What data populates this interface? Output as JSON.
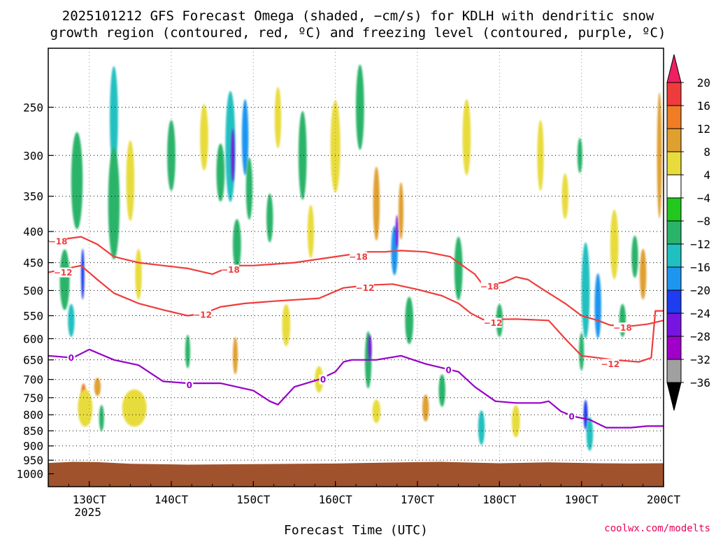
{
  "chart_data": {
    "type": "heatmap",
    "title_lines": [
      "2025101212 GFS Forecast Omega (shaded, −cm/s) for KDLH with dendritic snow",
      "growth region (contoured, red, ºC) and freezing level (contoured, purple, ºC)"
    ],
    "xlabel": "Forecast Time (UTC)",
    "ylabel": "",
    "credit": "coolwx.com/modelts",
    "x_ticks": [
      {
        "day": 13,
        "label": "130CT",
        "sub": "2025"
      },
      {
        "day": 14,
        "label": "140CT",
        "sub": ""
      },
      {
        "day": 15,
        "label": "150CT",
        "sub": ""
      },
      {
        "day": 16,
        "label": "160CT",
        "sub": ""
      },
      {
        "day": 17,
        "label": "170CT",
        "sub": ""
      },
      {
        "day": 18,
        "label": "180CT",
        "sub": ""
      },
      {
        "day": 19,
        "label": "190CT",
        "sub": ""
      },
      {
        "day": 20,
        "label": "200CT",
        "sub": ""
      }
    ],
    "xlim": [
      12.5,
      20.0
    ],
    "ylim_hPa": [
      1050,
      200
    ],
    "y_ticks": [
      {
        "p": 250,
        "label": "250"
      },
      {
        "p": 300,
        "label": "300"
      },
      {
        "p": 350,
        "label": "350"
      },
      {
        "p": 400,
        "label": "400"
      },
      {
        "p": 450,
        "label": "450"
      },
      {
        "p": 500,
        "label": "500"
      },
      {
        "p": 550,
        "label": "550"
      },
      {
        "p": 600,
        "label": "600"
      },
      {
        "p": 650,
        "label": "650"
      },
      {
        "p": 700,
        "label": "700"
      },
      {
        "p": 750,
        "label": "750"
      },
      {
        "p": 800,
        "label": "800"
      },
      {
        "p": 850,
        "label": "850"
      },
      {
        "p": 900,
        "label": "900"
      },
      {
        "p": 950,
        "label": "950"
      },
      {
        "p": 1000,
        "label": "1000"
      }
    ],
    "colorbar": {
      "levels": [
        20,
        16,
        12,
        8,
        4,
        -4,
        -8,
        -12,
        -16,
        -20,
        -24,
        -28,
        -32,
        -36
      ],
      "labels": [
        "20",
        "16",
        "12",
        "8",
        "4",
        "−4",
        "−8",
        "−12",
        "−16",
        "−20",
        "−24",
        "−28",
        "−32",
        "−36"
      ],
      "colors": [
        "#ee2060",
        "#ee3c3c",
        "#ee7d25",
        "#e0a030",
        "#e8dc3c",
        "#ffffff",
        "#22c81e",
        "#2ab46a",
        "#20c0c0",
        "#1e96f0",
        "#1e3cf0",
        "#7814e0",
        "#a000c8",
        "#a0a0a0",
        "#000000"
      ]
    },
    "colors": {
      "ground": "#a0522d",
      "dgz_contour": "#f03c3c",
      "freezing_contour": "#9600c8",
      "grid": "#8c8c8c",
      "credit": "#e6005a"
    },
    "surface_pressure_hPa": [
      [
        12.5,
        960
      ],
      [
        12.8,
        956
      ],
      [
        13.1,
        957
      ],
      [
        13.5,
        963
      ],
      [
        14.2,
        966
      ],
      [
        15.0,
        964
      ],
      [
        16.0,
        962
      ],
      [
        16.8,
        958
      ],
      [
        17.3,
        956
      ],
      [
        18.0,
        961
      ],
      [
        18.6,
        958
      ],
      [
        19.2,
        961
      ],
      [
        19.6,
        962
      ],
      [
        20.0,
        961
      ]
    ],
    "omega_features": [
      {
        "t": 12.7,
        "p": 480,
        "v": -8,
        "w": 0.06,
        "h": 110
      },
      {
        "t": 12.78,
        "p": 560,
        "v": -12,
        "w": 0.04,
        "h": 70
      },
      {
        "t": 12.85,
        "p": 330,
        "v": -8,
        "w": 0.07,
        "h": 120
      },
      {
        "t": 12.92,
        "p": 470,
        "v": -20,
        "w": 0.02,
        "h": 90
      },
      {
        "t": 12.93,
        "p": 740,
        "v": 12,
        "w": 0.03,
        "h": 60
      },
      {
        "t": 12.95,
        "p": 780,
        "v": 4,
        "w": 0.09,
        "h": 110
      },
      {
        "t": 13.1,
        "p": 720,
        "v": 8,
        "w": 0.04,
        "h": 50
      },
      {
        "t": 13.15,
        "p": 810,
        "v": -8,
        "w": 0.03,
        "h": 80
      },
      {
        "t": 13.3,
        "p": 260,
        "v": -12,
        "w": 0.05,
        "h": 100
      },
      {
        "t": 13.3,
        "p": 360,
        "v": -8,
        "w": 0.07,
        "h": 150
      },
      {
        "t": 13.5,
        "p": 330,
        "v": 4,
        "w": 0.05,
        "h": 100
      },
      {
        "t": 13.55,
        "p": 780,
        "v": 4,
        "w": 0.15,
        "h": 110
      },
      {
        "t": 13.6,
        "p": 470,
        "v": 4,
        "w": 0.04,
        "h": 90
      },
      {
        "t": 14.0,
        "p": 300,
        "v": -8,
        "w": 0.05,
        "h": 80
      },
      {
        "t": 14.2,
        "p": 630,
        "v": -8,
        "w": 0.03,
        "h": 80
      },
      {
        "t": 14.4,
        "p": 280,
        "v": 4,
        "w": 0.05,
        "h": 70
      },
      {
        "t": 14.6,
        "p": 320,
        "v": -8,
        "w": 0.05,
        "h": 70
      },
      {
        "t": 14.72,
        "p": 290,
        "v": -12,
        "w": 0.06,
        "h": 120
      },
      {
        "t": 14.75,
        "p": 300,
        "v": -24,
        "w": 0.02,
        "h": 60
      },
      {
        "t": 14.78,
        "p": 640,
        "v": 8,
        "w": 0.03,
        "h": 90
      },
      {
        "t": 14.8,
        "p": 420,
        "v": -8,
        "w": 0.05,
        "h": 80
      },
      {
        "t": 14.9,
        "p": 280,
        "v": -16,
        "w": 0.04,
        "h": 80
      },
      {
        "t": 14.95,
        "p": 340,
        "v": -8,
        "w": 0.04,
        "h": 80
      },
      {
        "t": 15.2,
        "p": 380,
        "v": -8,
        "w": 0.04,
        "h": 70
      },
      {
        "t": 15.3,
        "p": 260,
        "v": 4,
        "w": 0.04,
        "h": 60
      },
      {
        "t": 15.4,
        "p": 570,
        "v": 4,
        "w": 0.05,
        "h": 90
      },
      {
        "t": 15.6,
        "p": 300,
        "v": -8,
        "w": 0.05,
        "h": 100
      },
      {
        "t": 15.7,
        "p": 400,
        "v": 4,
        "w": 0.04,
        "h": 80
      },
      {
        "t": 15.8,
        "p": 700,
        "v": 4,
        "w": 0.05,
        "h": 70
      },
      {
        "t": 16.0,
        "p": 290,
        "v": 4,
        "w": 0.06,
        "h": 100
      },
      {
        "t": 16.3,
        "p": 250,
        "v": -8,
        "w": 0.05,
        "h": 80
      },
      {
        "t": 16.4,
        "p": 650,
        "v": -8,
        "w": 0.04,
        "h": 140
      },
      {
        "t": 16.42,
        "p": 620,
        "v": -24,
        "w": 0.02,
        "h": 60
      },
      {
        "t": 16.5,
        "p": 360,
        "v": 8,
        "w": 0.04,
        "h": 100
      },
      {
        "t": 16.5,
        "p": 790,
        "v": 4,
        "w": 0.05,
        "h": 70
      },
      {
        "t": 16.72,
        "p": 430,
        "v": -16,
        "w": 0.04,
        "h": 80
      },
      {
        "t": 16.75,
        "p": 400,
        "v": -24,
        "w": 0.015,
        "h": 50
      },
      {
        "t": 16.8,
        "p": 370,
        "v": 8,
        "w": 0.03,
        "h": 80
      },
      {
        "t": 16.9,
        "p": 560,
        "v": -8,
        "w": 0.05,
        "h": 100
      },
      {
        "t": 17.1,
        "p": 780,
        "v": 8,
        "w": 0.04,
        "h": 80
      },
      {
        "t": 17.3,
        "p": 730,
        "v": -8,
        "w": 0.04,
        "h": 90
      },
      {
        "t": 17.5,
        "p": 460,
        "v": -8,
        "w": 0.05,
        "h": 110
      },
      {
        "t": 17.6,
        "p": 280,
        "v": 4,
        "w": 0.05,
        "h": 80
      },
      {
        "t": 17.78,
        "p": 840,
        "v": -12,
        "w": 0.04,
        "h": 110
      },
      {
        "t": 18.0,
        "p": 560,
        "v": -8,
        "w": 0.04,
        "h": 70
      },
      {
        "t": 18.2,
        "p": 820,
        "v": 4,
        "w": 0.05,
        "h": 100
      },
      {
        "t": 18.5,
        "p": 300,
        "v": 4,
        "w": 0.04,
        "h": 80
      },
      {
        "t": 18.8,
        "p": 350,
        "v": 4,
        "w": 0.04,
        "h": 60
      },
      {
        "t": 18.98,
        "p": 300,
        "v": -8,
        "w": 0.03,
        "h": 40
      },
      {
        "t": 19.0,
        "p": 630,
        "v": -8,
        "w": 0.03,
        "h": 90
      },
      {
        "t": 19.05,
        "p": 500,
        "v": -12,
        "w": 0.05,
        "h": 180
      },
      {
        "t": 19.05,
        "p": 800,
        "v": -20,
        "w": 0.025,
        "h": 90
      },
      {
        "t": 19.1,
        "p": 860,
        "v": -12,
        "w": 0.04,
        "h": 110
      },
      {
        "t": 19.2,
        "p": 530,
        "v": -16,
        "w": 0.04,
        "h": 130
      },
      {
        "t": 19.4,
        "p": 420,
        "v": 4,
        "w": 0.05,
        "h": 110
      },
      {
        "t": 19.5,
        "p": 560,
        "v": -8,
        "w": 0.04,
        "h": 70
      },
      {
        "t": 19.65,
        "p": 440,
        "v": -8,
        "w": 0.04,
        "h": 70
      },
      {
        "t": 19.75,
        "p": 470,
        "v": 8,
        "w": 0.04,
        "h": 90
      },
      {
        "t": 19.95,
        "p": 300,
        "v": 8,
        "w": 0.03,
        "h": 140
      }
    ],
    "series": [
      {
        "name": "-18 ºC (dendritic snow growth top)",
        "label": "−18",
        "color": "#f03c3c",
        "points": [
          [
            12.5,
            415
          ],
          [
            12.9,
            408
          ],
          [
            13.1,
            420
          ],
          [
            13.3,
            440
          ],
          [
            13.6,
            450
          ],
          [
            13.9,
            455
          ],
          [
            14.2,
            460
          ],
          [
            14.5,
            470
          ],
          [
            14.75,
            455
          ],
          [
            15.0,
            455
          ],
          [
            15.5,
            450
          ],
          [
            16.0,
            440
          ],
          [
            16.4,
            432
          ],
          [
            16.6,
            432
          ],
          [
            16.8,
            430
          ],
          [
            17.1,
            432
          ],
          [
            17.4,
            440
          ],
          [
            17.55,
            455
          ],
          [
            17.7,
            470
          ],
          [
            17.8,
            490
          ],
          [
            18.05,
            485
          ],
          [
            18.2,
            475
          ],
          [
            18.35,
            480
          ],
          [
            18.5,
            495
          ],
          [
            18.8,
            525
          ],
          [
            19.0,
            550
          ],
          [
            19.2,
            560
          ],
          [
            19.35,
            570
          ],
          [
            19.6,
            572
          ],
          [
            19.8,
            568
          ],
          [
            20.0,
            560
          ]
        ],
        "label_points": [
          [
            12.62,
            415
          ],
          [
            14.72,
            462
          ],
          [
            16.28,
            440
          ],
          [
            17.88,
            492
          ],
          [
            19.5,
            575
          ]
        ]
      },
      {
        "name": "-12 ºC (dendritic snow growth bottom)",
        "label": "−12",
        "color": "#f03c3c",
        "points": [
          [
            12.5,
            467
          ],
          [
            12.9,
            455
          ],
          [
            13.1,
            480
          ],
          [
            13.3,
            505
          ],
          [
            13.6,
            525
          ],
          [
            13.9,
            538
          ],
          [
            14.2,
            550
          ],
          [
            14.4,
            545
          ],
          [
            14.6,
            532
          ],
          [
            14.9,
            525
          ],
          [
            15.3,
            520
          ],
          [
            15.8,
            515
          ],
          [
            16.1,
            495
          ],
          [
            16.4,
            490
          ],
          [
            16.7,
            488
          ],
          [
            17.0,
            498
          ],
          [
            17.3,
            510
          ],
          [
            17.5,
            525
          ],
          [
            17.65,
            545
          ],
          [
            17.8,
            558
          ],
          [
            18.2,
            557
          ],
          [
            18.6,
            560
          ],
          [
            18.8,
            600
          ],
          [
            19.0,
            640
          ],
          [
            19.4,
            650
          ],
          [
            19.7,
            655
          ],
          [
            19.85,
            645
          ],
          [
            19.9,
            540
          ],
          [
            20.0,
            540
          ]
        ],
        "label_points": [
          [
            12.68,
            467
          ],
          [
            14.38,
            548
          ],
          [
            16.36,
            495
          ],
          [
            17.92,
            565
          ],
          [
            19.35,
            660
          ]
        ]
      },
      {
        "name": "0 ºC (freezing level)",
        "label": "0",
        "color": "#9600c8",
        "points": [
          [
            12.5,
            640
          ],
          [
            12.8,
            645
          ],
          [
            13.0,
            625
          ],
          [
            13.3,
            650
          ],
          [
            13.6,
            663
          ],
          [
            13.9,
            705
          ],
          [
            14.2,
            710
          ],
          [
            14.6,
            710
          ],
          [
            15.0,
            730
          ],
          [
            15.2,
            760
          ],
          [
            15.3,
            770
          ],
          [
            15.5,
            720
          ],
          [
            15.8,
            700
          ],
          [
            16.0,
            680
          ],
          [
            16.1,
            655
          ],
          [
            16.2,
            650
          ],
          [
            16.5,
            650
          ],
          [
            16.8,
            640
          ],
          [
            17.1,
            660
          ],
          [
            17.5,
            680
          ],
          [
            17.7,
            720
          ],
          [
            17.95,
            760
          ],
          [
            18.2,
            765
          ],
          [
            18.5,
            765
          ],
          [
            18.6,
            760
          ],
          [
            18.75,
            790
          ],
          [
            18.9,
            805
          ],
          [
            19.1,
            815
          ],
          [
            19.3,
            840
          ],
          [
            19.6,
            840
          ],
          [
            19.8,
            835
          ],
          [
            20.0,
            835
          ]
        ],
        "label_points": [
          [
            12.78,
            645
          ],
          [
            14.22,
            715
          ],
          [
            15.85,
            700
          ],
          [
            17.38,
            675
          ],
          [
            18.88,
            805
          ]
        ]
      }
    ]
  }
}
